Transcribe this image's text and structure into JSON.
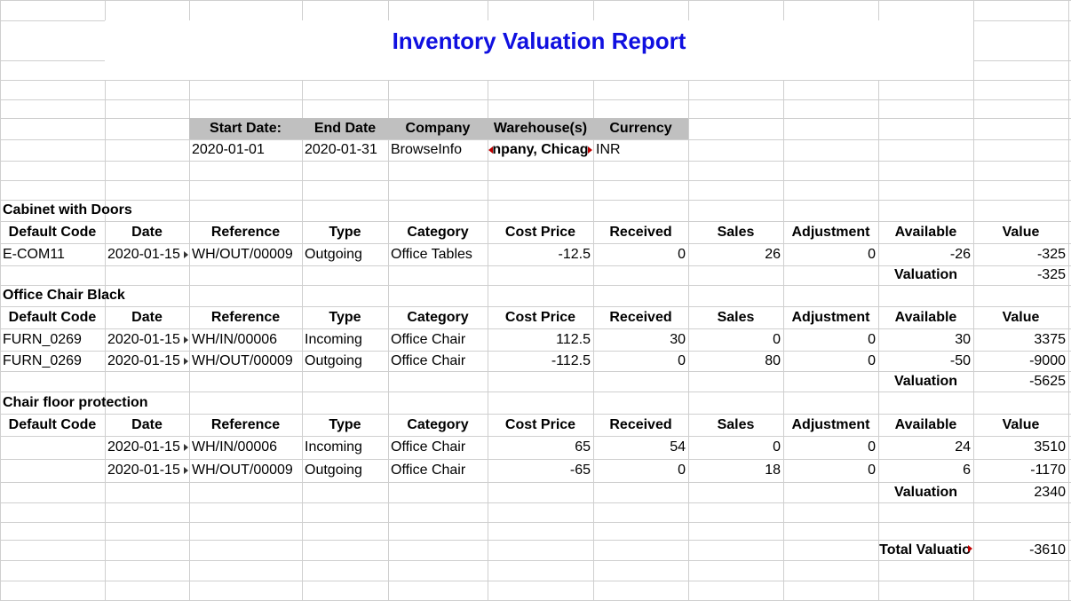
{
  "report": {
    "title": "Inventory Valuation Report",
    "filters": {
      "headers": [
        "Start Date:",
        "End Date",
        "Company",
        "Warehouse(s)",
        "Currency"
      ],
      "values": [
        "2020-01-01",
        "2020-01-31",
        "BrowseInfo",
        "npany, Chicag",
        "INR"
      ]
    },
    "columns": [
      "Default Code",
      "Date",
      "Reference",
      "Type",
      "Category",
      "Cost Price",
      "Received",
      "Sales",
      "Adjustment",
      "Available",
      "Value"
    ],
    "valuation_label": "Valuation",
    "sections": [
      {
        "product": "Cabinet with Doors",
        "rows": [
          [
            "E-COM11",
            "2020-01-15",
            "WH/OUT/00009",
            "Outgoing",
            "Office Tables",
            "-12.5",
            "0",
            "26",
            "0",
            "-26",
            "-325"
          ]
        ],
        "valuation": "-325"
      },
      {
        "product": "Office Chair Black",
        "rows": [
          [
            "FURN_0269",
            "2020-01-15",
            "WH/IN/00006",
            "Incoming",
            "Office Chair",
            "112.5",
            "30",
            "0",
            "0",
            "30",
            "3375"
          ],
          [
            "FURN_0269",
            "2020-01-15",
            "WH/OUT/00009",
            "Outgoing",
            "Office Chair",
            "-112.5",
            "0",
            "80",
            "0",
            "-50",
            "-9000"
          ]
        ],
        "valuation": "-5625"
      },
      {
        "product": "Chair floor protection",
        "rows": [
          [
            "",
            "2020-01-15",
            "WH/IN/00006",
            "Incoming",
            "Office Chair",
            "65",
            "54",
            "0",
            "0",
            "24",
            "3510"
          ],
          [
            "",
            "2020-01-15",
            "WH/OUT/00009",
            "Outgoing",
            "Office Chair",
            "-65",
            "0",
            "18",
            "0",
            "6",
            "-1170"
          ]
        ],
        "valuation": "2340"
      }
    ],
    "total_label": "Total Valuatio",
    "total_value": "-3610"
  }
}
